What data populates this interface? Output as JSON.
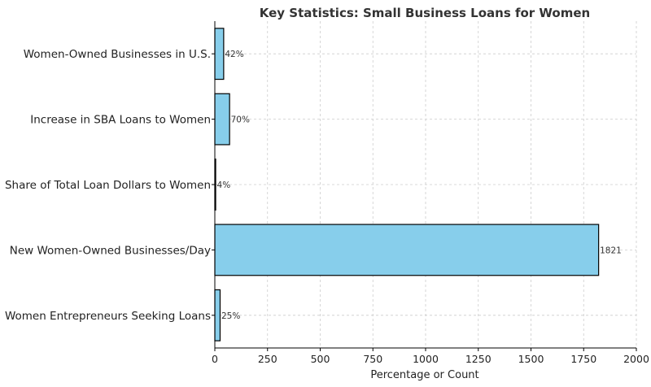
{
  "chart_data": {
    "type": "bar",
    "orientation": "horizontal",
    "title": "Key Statistics: Small Business Loans for Women",
    "xlabel": "Percentage or Count",
    "ylabel": "",
    "categories": [
      "Women-Owned Businesses in U.S.",
      "Increase in SBA Loans to Women",
      "Share of Total Loan Dollars to Women",
      "New Women-Owned Businesses/Day",
      "Women Entrepreneurs Seeking Loans"
    ],
    "values": [
      42,
      70,
      4,
      1821,
      25
    ],
    "data_labels": [
      "42%",
      "70%",
      "4%",
      "1821",
      "25%"
    ],
    "xlim": [
      0,
      2000
    ],
    "xticks": [
      0,
      250,
      500,
      750,
      1000,
      1250,
      1500,
      1750,
      2000
    ],
    "grid": true,
    "bar_color": "#87CEEB",
    "edge_color": "#000000"
  }
}
